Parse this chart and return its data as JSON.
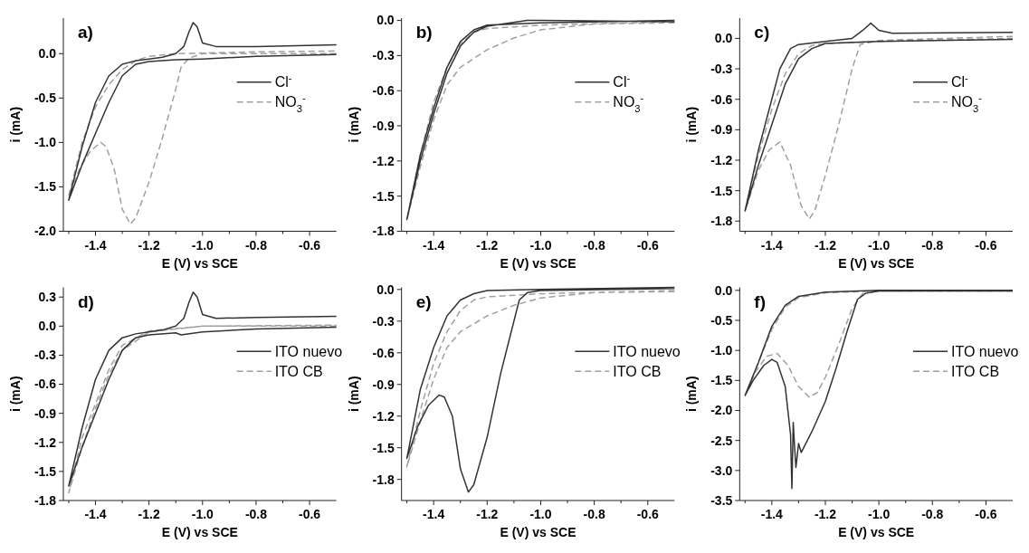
{
  "chart_data": [
    {
      "type": "line",
      "title": "a)",
      "xlabel": "E (V) vs SCE",
      "ylabel": "i (mA)",
      "xlim": [
        -1.52,
        -0.5
      ],
      "xticks": [
        {
          "value": -1.5,
          "label": null
        },
        -1.4,
        {
          "value": -1.3,
          "label": null
        },
        -1.2,
        {
          "value": -1.1,
          "label": null
        },
        {
          "value": -1.0,
          "label": "-1.0"
        },
        {
          "value": -0.9,
          "label": null
        },
        -0.8,
        {
          "value": -0.7,
          "label": null
        },
        -0.6
      ],
      "ylim": [
        -2.0,
        0.4
      ],
      "yticks": [
        {
          "value": -2.0,
          "label": "-2.0"
        },
        -1.5,
        {
          "value": -1.0,
          "label": "-1.0"
        },
        -0.5,
        {
          "value": 0.0,
          "label": "0.0"
        }
      ],
      "legend": "top right",
      "series": [
        {
          "name": "Cl$^{-}$",
          "color": "#333333",
          "line_style": "solid",
          "x": [
            -0.5,
            -0.8,
            -1.0,
            -1.1,
            -1.2,
            -1.25,
            -1.3,
            -1.35,
            -1.4,
            -1.45,
            -1.5,
            -1.45,
            -1.4,
            -1.35,
            -1.3,
            -1.25,
            -1.2,
            -1.15,
            -1.1,
            -1.07,
            -1.05,
            -1.035,
            -1.02,
            -1.0,
            -0.95,
            -0.8,
            -0.5
          ],
          "values": [
            -0.01,
            -0.03,
            -0.06,
            -0.07,
            -0.09,
            -0.12,
            -0.25,
            -0.55,
            -0.9,
            -1.25,
            -1.65,
            -1.05,
            -0.55,
            -0.25,
            -0.12,
            -0.08,
            -0.06,
            -0.04,
            0.0,
            0.08,
            0.25,
            0.35,
            0.3,
            0.12,
            0.08,
            0.08,
            0.1
          ]
        },
        {
          "name": "NO$_{3}$$^{-}$",
          "color": "#a0a0a0",
          "line_style": "dashed",
          "x": [
            -0.5,
            -0.8,
            -1.0,
            -1.05,
            -1.08,
            -1.1,
            -1.15,
            -1.2,
            -1.25,
            -1.27,
            -1.3,
            -1.33,
            -1.36,
            -1.38,
            -1.42,
            -1.46,
            -1.5,
            -1.45,
            -1.4,
            -1.35,
            -1.3,
            -1.25,
            -1.2,
            -1.1,
            -0.8,
            -0.5
          ],
          "values": [
            0.0,
            0.0,
            0.0,
            -0.05,
            -0.15,
            -0.4,
            -0.95,
            -1.45,
            -1.85,
            -1.92,
            -1.75,
            -1.3,
            -1.05,
            -1.0,
            -1.1,
            -1.3,
            -1.6,
            -1.0,
            -0.6,
            -0.35,
            -0.18,
            -0.08,
            -0.03,
            0.0,
            0.02,
            0.03
          ]
        }
      ]
    },
    {
      "type": "line",
      "title": "b)",
      "xlabel": "E (V) vs SCE",
      "ylabel": "i (mA)",
      "xlim": [
        -1.52,
        -0.5
      ],
      "xticks": [
        {
          "value": -1.5,
          "label": null
        },
        -1.4,
        {
          "value": -1.3,
          "label": null
        },
        -1.2,
        {
          "value": -1.1,
          "label": null
        },
        {
          "value": -1.0,
          "label": "-1.0"
        },
        {
          "value": -0.9,
          "label": null
        },
        -0.8,
        {
          "value": -0.7,
          "label": null
        },
        -0.6
      ],
      "ylim": [
        -1.8,
        0.02
      ],
      "yticks": [
        -1.8,
        -1.5,
        -1.2,
        -0.9,
        -0.6,
        -0.3,
        {
          "value": 0.0,
          "label": "0.0"
        }
      ],
      "legend": "top right",
      "series": [
        {
          "name": "Cl$^{-}$",
          "color": "#333333",
          "line_style": "solid",
          "x": [
            -0.5,
            -1.0,
            -1.05,
            -1.2,
            -1.25,
            -1.3,
            -1.35,
            -1.4,
            -1.45,
            -1.5,
            -1.45,
            -1.4,
            -1.35,
            -1.3,
            -1.25,
            -1.2,
            -1.0,
            -0.5
          ],
          "values": [
            -0.01,
            0.0,
            0.0,
            -0.05,
            -0.1,
            -0.22,
            -0.45,
            -0.8,
            -1.2,
            -1.7,
            -1.15,
            -0.75,
            -0.4,
            -0.18,
            -0.08,
            -0.04,
            -0.02,
            0.0
          ]
        },
        {
          "name": "NO$_{3}$$^{-}$",
          "color": "#a0a0a0",
          "line_style": "dashed",
          "x": [
            -0.5,
            -0.8,
            -1.0,
            -1.1,
            -1.2,
            -1.3,
            -1.35,
            -1.4,
            -1.45,
            -1.5,
            -1.45,
            -1.4,
            -1.35,
            -1.3,
            -1.25,
            -1.2,
            -1.0,
            -0.5
          ],
          "values": [
            -0.02,
            -0.03,
            -0.08,
            -0.15,
            -0.25,
            -0.4,
            -0.55,
            -0.85,
            -1.25,
            -1.7,
            -1.15,
            -0.7,
            -0.4,
            -0.2,
            -0.1,
            -0.07,
            -0.04,
            -0.01
          ]
        }
      ]
    },
    {
      "type": "line",
      "title": "c)",
      "xlabel": "E (V) vs SCE",
      "ylabel": "i (mA)",
      "xlim": [
        -1.52,
        -0.5
      ],
      "xticks": [
        {
          "value": -1.5,
          "label": null
        },
        -1.4,
        {
          "value": -1.3,
          "label": null
        },
        -1.2,
        {
          "value": -1.1,
          "label": null
        },
        {
          "value": -1.0,
          "label": "-1.0"
        },
        {
          "value": -0.9,
          "label": null
        },
        -0.8,
        {
          "value": -0.7,
          "label": null
        },
        -0.6
      ],
      "ylim": [
        -1.9,
        0.2
      ],
      "yticks": [
        -1.8,
        -1.5,
        -1.2,
        -0.9,
        -0.6,
        -0.3,
        {
          "value": 0.0,
          "label": "0.0"
        }
      ],
      "legend": "top right",
      "series": [
        {
          "name": "Cl$^{-}$",
          "color": "#333333",
          "line_style": "solid",
          "x": [
            -0.5,
            -1.0,
            -1.2,
            -1.25,
            -1.3,
            -1.35,
            -1.4,
            -1.45,
            -1.5,
            -1.45,
            -1.4,
            -1.37,
            -1.33,
            -1.3,
            -1.2,
            -1.1,
            -1.06,
            -1.03,
            -1.0,
            -0.95,
            -0.5
          ],
          "values": [
            -0.01,
            -0.03,
            -0.05,
            -0.1,
            -0.2,
            -0.45,
            -0.85,
            -1.25,
            -1.7,
            -1.1,
            -0.6,
            -0.3,
            -0.1,
            -0.06,
            -0.03,
            0.0,
            0.08,
            0.15,
            0.08,
            0.05,
            0.06
          ]
        },
        {
          "name": "NO$_{3}$$^{-}$",
          "color": "#a0a0a0",
          "line_style": "dashed",
          "x": [
            -0.5,
            -1.0,
            -1.07,
            -1.1,
            -1.15,
            -1.2,
            -1.24,
            -1.26,
            -1.29,
            -1.33,
            -1.37,
            -1.41,
            -1.45,
            -1.5,
            -1.45,
            -1.4,
            -1.35,
            -1.3,
            -1.25,
            -1.2,
            -1.0,
            -0.5
          ],
          "values": [
            0.02,
            -0.02,
            -0.06,
            -0.3,
            -0.85,
            -1.35,
            -1.7,
            -1.78,
            -1.65,
            -1.25,
            -1.02,
            -1.1,
            -1.3,
            -1.7,
            -1.15,
            -0.7,
            -0.35,
            -0.15,
            -0.07,
            -0.05,
            -0.03,
            0.0
          ]
        }
      ]
    },
    {
      "type": "line",
      "title": "d)",
      "xlabel": "E (V) vs SCE",
      "ylabel": "i (mA)",
      "xlim": [
        -1.52,
        -0.5
      ],
      "xticks": [
        {
          "value": -1.5,
          "label": null
        },
        -1.4,
        {
          "value": -1.3,
          "label": null
        },
        -1.2,
        {
          "value": -1.1,
          "label": null
        },
        {
          "value": -1.0,
          "label": "-1.0"
        },
        {
          "value": -0.9,
          "label": null
        },
        -0.8,
        {
          "value": -0.7,
          "label": null
        },
        -0.6
      ],
      "ylim": [
        -1.8,
        0.4
      ],
      "yticks": [
        -1.8,
        -1.5,
        -1.2,
        -0.9,
        -0.6,
        -0.3,
        {
          "value": 0.0,
          "label": "0.0"
        },
        0.3
      ],
      "legend": "top right",
      "series": [
        {
          "name": "ITO nuevo",
          "color": "#333333",
          "line_style": "solid",
          "x": [
            -0.5,
            -0.8,
            -1.0,
            -1.08,
            -1.1,
            -1.2,
            -1.25,
            -1.3,
            -1.35,
            -1.4,
            -1.45,
            -1.5,
            -1.45,
            -1.4,
            -1.35,
            -1.3,
            -1.25,
            -1.2,
            -1.15,
            -1.1,
            -1.07,
            -1.05,
            -1.035,
            -1.02,
            -1.0,
            -0.95,
            -0.8,
            -0.5
          ],
          "values": [
            -0.01,
            -0.03,
            -0.06,
            -0.09,
            -0.07,
            -0.09,
            -0.12,
            -0.25,
            -0.55,
            -0.9,
            -1.25,
            -1.65,
            -1.05,
            -0.55,
            -0.25,
            -0.12,
            -0.08,
            -0.06,
            -0.04,
            0.0,
            0.08,
            0.25,
            0.35,
            0.3,
            0.12,
            0.08,
            0.09,
            0.1
          ]
        },
        {
          "name": "ITO CB",
          "color": "#a0a0a0",
          "line_style": "dashed",
          "x": [
            -0.5,
            -1.0,
            -1.2,
            -1.3,
            -1.35,
            -1.4,
            -1.45,
            -1.5,
            -1.45,
            -1.4,
            -1.35,
            -1.3,
            -1.2,
            -1.0,
            -0.5
          ],
          "values": [
            0.0,
            0.0,
            -0.06,
            -0.25,
            -0.5,
            -0.85,
            -1.25,
            -1.72,
            -1.15,
            -0.8,
            -0.45,
            -0.2,
            -0.05,
            0.0,
            0.01
          ]
        }
      ]
    },
    {
      "type": "line",
      "title": "e)",
      "xlabel": "E (V) vs SCE",
      "ylabel": "i (mA)",
      "xlim": [
        -1.52,
        -0.5
      ],
      "xticks": [
        {
          "value": -1.5,
          "label": null
        },
        -1.4,
        {
          "value": -1.3,
          "label": null
        },
        -1.2,
        {
          "value": -1.1,
          "label": null
        },
        {
          "value": -1.0,
          "label": "-1.0"
        },
        {
          "value": -0.9,
          "label": null
        },
        -0.8,
        {
          "value": -0.7,
          "label": null
        },
        -0.6
      ],
      "ylim": [
        -2.0,
        0.02
      ],
      "yticks": [
        -1.8,
        -1.5,
        -1.2,
        -0.9,
        -0.6,
        -0.3,
        {
          "value": 0.0,
          "label": "0.0"
        }
      ],
      "legend": "top right",
      "series": [
        {
          "name": "ITO nuevo",
          "color": "#333333",
          "line_style": "solid",
          "x": [
            -0.5,
            -1.0,
            -1.05,
            -1.08,
            -1.1,
            -1.15,
            -1.2,
            -1.25,
            -1.27,
            -1.3,
            -1.33,
            -1.36,
            -1.38,
            -1.42,
            -1.46,
            -1.5,
            -1.45,
            -1.4,
            -1.35,
            -1.3,
            -1.25,
            -1.2,
            -1.0,
            -0.5
          ],
          "values": [
            0.01,
            -0.01,
            -0.03,
            -0.1,
            -0.3,
            -0.8,
            -1.4,
            -1.85,
            -1.92,
            -1.7,
            -1.2,
            -1.02,
            -1.0,
            -1.1,
            -1.3,
            -1.6,
            -0.95,
            -0.55,
            -0.25,
            -0.1,
            -0.04,
            -0.01,
            0.0,
            0.02
          ]
        },
        {
          "name": "ITO CB",
          "color": "#a0a0a0",
          "line_style": "dashed",
          "x": [
            -0.5,
            -0.8,
            -1.0,
            -1.1,
            -1.2,
            -1.3,
            -1.35,
            -1.4,
            -1.45,
            -1.5,
            -1.45,
            -1.4,
            -1.35,
            -1.3,
            -1.25,
            -1.2,
            -1.0,
            -0.5
          ],
          "values": [
            -0.02,
            -0.03,
            -0.08,
            -0.15,
            -0.25,
            -0.4,
            -0.55,
            -0.85,
            -1.25,
            -1.68,
            -1.15,
            -0.7,
            -0.4,
            -0.2,
            -0.1,
            -0.07,
            -0.04,
            -0.01
          ]
        }
      ]
    },
    {
      "type": "line",
      "title": "f)",
      "xlabel": "E (V) vs SCE",
      "ylabel": "i (mA)",
      "xlim": [
        -1.52,
        -0.5
      ],
      "xticks": [
        {
          "value": -1.5,
          "label": null
        },
        -1.4,
        {
          "value": -1.3,
          "label": null
        },
        -1.2,
        {
          "value": -1.1,
          "label": null
        },
        {
          "value": -1.0,
          "label": "-1.0"
        },
        {
          "value": -0.9,
          "label": null
        },
        -0.8,
        {
          "value": -0.7,
          "label": null
        },
        -0.6
      ],
      "ylim": [
        -3.5,
        0.05
      ],
      "yticks": [
        -3.5,
        {
          "value": -3.0,
          "label": "-3.0"
        },
        -2.5,
        {
          "value": -2.0,
          "label": "-2.0"
        },
        -1.5,
        {
          "value": -1.0,
          "label": "-1.0"
        },
        -0.5,
        {
          "value": 0.0,
          "label": "0.0"
        }
      ],
      "legend": "top right",
      "series": [
        {
          "name": "ITO nuevo",
          "color": "#333333",
          "line_style": "solid",
          "x": [
            -0.5,
            -1.0,
            -1.05,
            -1.08,
            -1.12,
            -1.16,
            -1.2,
            -1.25,
            -1.29,
            -1.3,
            -1.31,
            -1.315,
            -1.32,
            -1.325,
            -1.33,
            -1.35,
            -1.38,
            -1.4,
            -1.43,
            -1.47,
            -1.5,
            -1.45,
            -1.4,
            -1.35,
            -1.3,
            -1.2,
            -1.0,
            -0.5
          ],
          "values": [
            -0.01,
            -0.01,
            -0.05,
            -0.15,
            -0.7,
            -1.3,
            -1.85,
            -2.35,
            -2.7,
            -2.55,
            -2.95,
            -2.6,
            -2.2,
            -3.3,
            -2.4,
            -1.6,
            -1.2,
            -1.15,
            -1.25,
            -1.5,
            -1.75,
            -1.2,
            -0.6,
            -0.25,
            -0.1,
            -0.03,
            0.0,
            0.0
          ]
        },
        {
          "name": "ITO CB",
          "color": "#a0a0a0",
          "line_style": "dashed",
          "x": [
            -0.5,
            -1.0,
            -1.06,
            -1.1,
            -1.15,
            -1.2,
            -1.23,
            -1.26,
            -1.3,
            -1.34,
            -1.38,
            -1.42,
            -1.46,
            -1.5,
            -1.45,
            -1.4,
            -1.35,
            -1.3,
            -1.2,
            -1.0,
            -0.5
          ],
          "values": [
            -0.01,
            -0.01,
            -0.05,
            -0.3,
            -0.9,
            -1.45,
            -1.7,
            -1.78,
            -1.6,
            -1.25,
            -1.05,
            -1.1,
            -1.35,
            -1.75,
            -1.2,
            -0.65,
            -0.28,
            -0.12,
            -0.04,
            -0.01,
            0.0
          ]
        }
      ]
    }
  ]
}
